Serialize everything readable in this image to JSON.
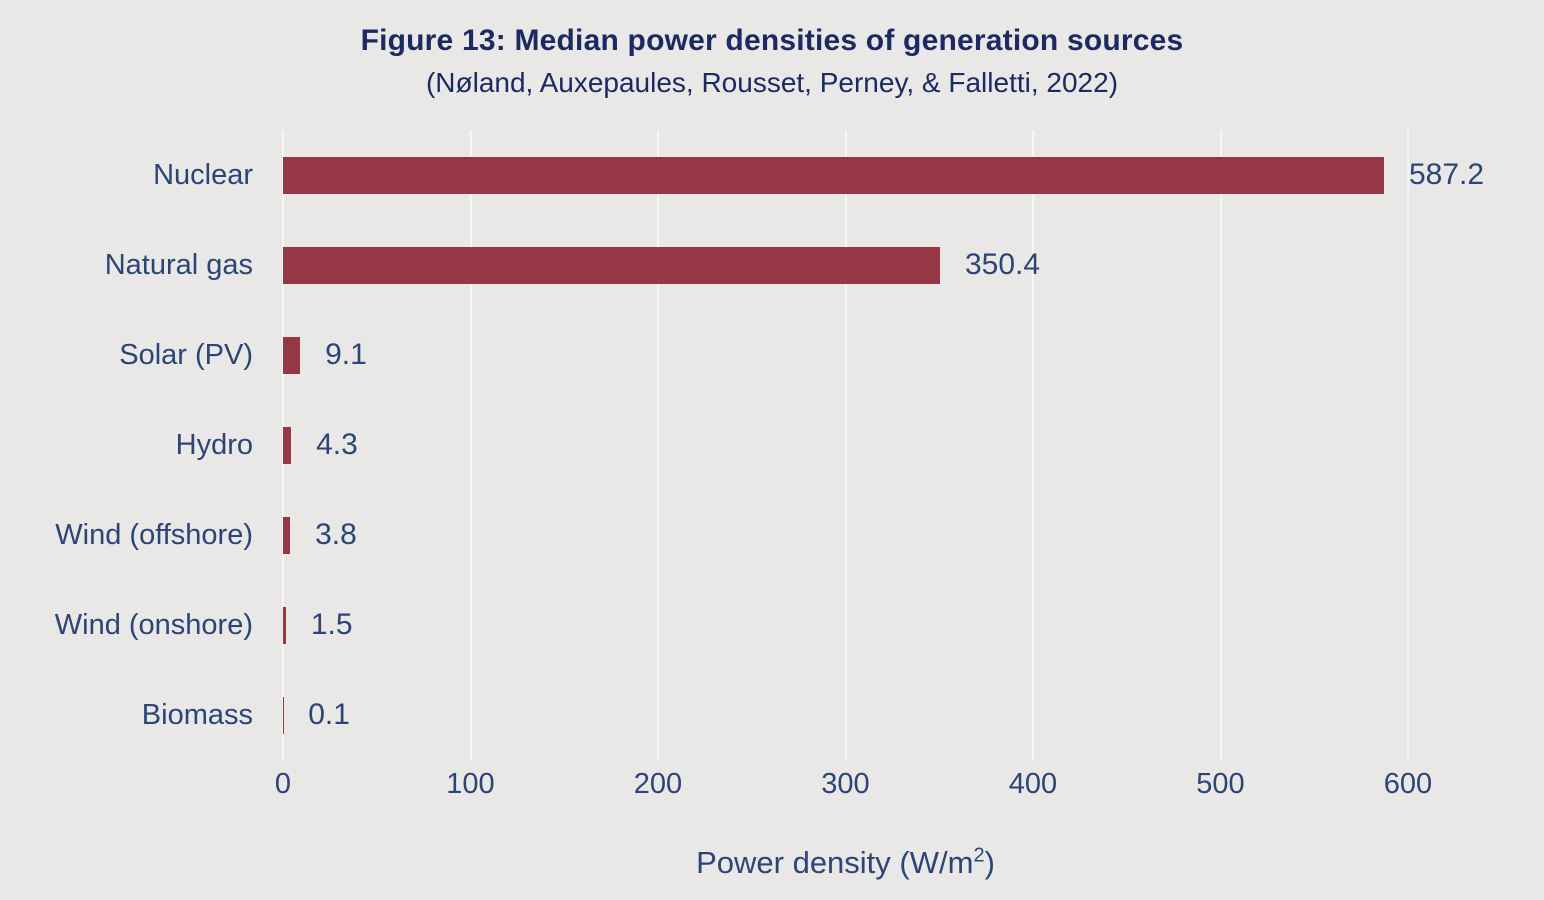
{
  "header": {
    "title": "Figure 13: Median power densities of generation sources",
    "subtitle": "(Nøland, Auxepaules, Rousset, Perney, & Falletti, 2022)"
  },
  "chart_data": {
    "type": "bar",
    "orientation": "horizontal",
    "title": "Figure 13: Median power densities of generation sources",
    "subtitle": "(Nøland, Auxepaules, Rousset, Perney, & Falletti, 2022)",
    "categories": [
      "Nuclear",
      "Natural gas",
      "Solar (PV)",
      "Hydro",
      "Wind (offshore)",
      "Wind (onshore)",
      "Biomass"
    ],
    "values": [
      587.2,
      350.4,
      9.1,
      4.3,
      3.8,
      1.5,
      0.1
    ],
    "value_labels": [
      "587.2",
      "350.4",
      "9.1",
      "4.3",
      "3.8",
      "1.5",
      "0.1"
    ],
    "xlabel": "Power density (W/m²)",
    "xlabel_parts": {
      "prefix": "Power density (W/m",
      "sup": "2",
      "suffix": ")"
    },
    "ylabel": "",
    "xlim": [
      0,
      600
    ],
    "xticks": [
      0,
      100,
      200,
      300,
      400,
      500,
      600
    ],
    "grid": true,
    "legend": "none",
    "colors": {
      "bar": "#953744",
      "background": "#e9e8e6",
      "gridline": "#f6f6f4",
      "label_text": "#2b4577",
      "title_text": "#1b2a63"
    }
  }
}
